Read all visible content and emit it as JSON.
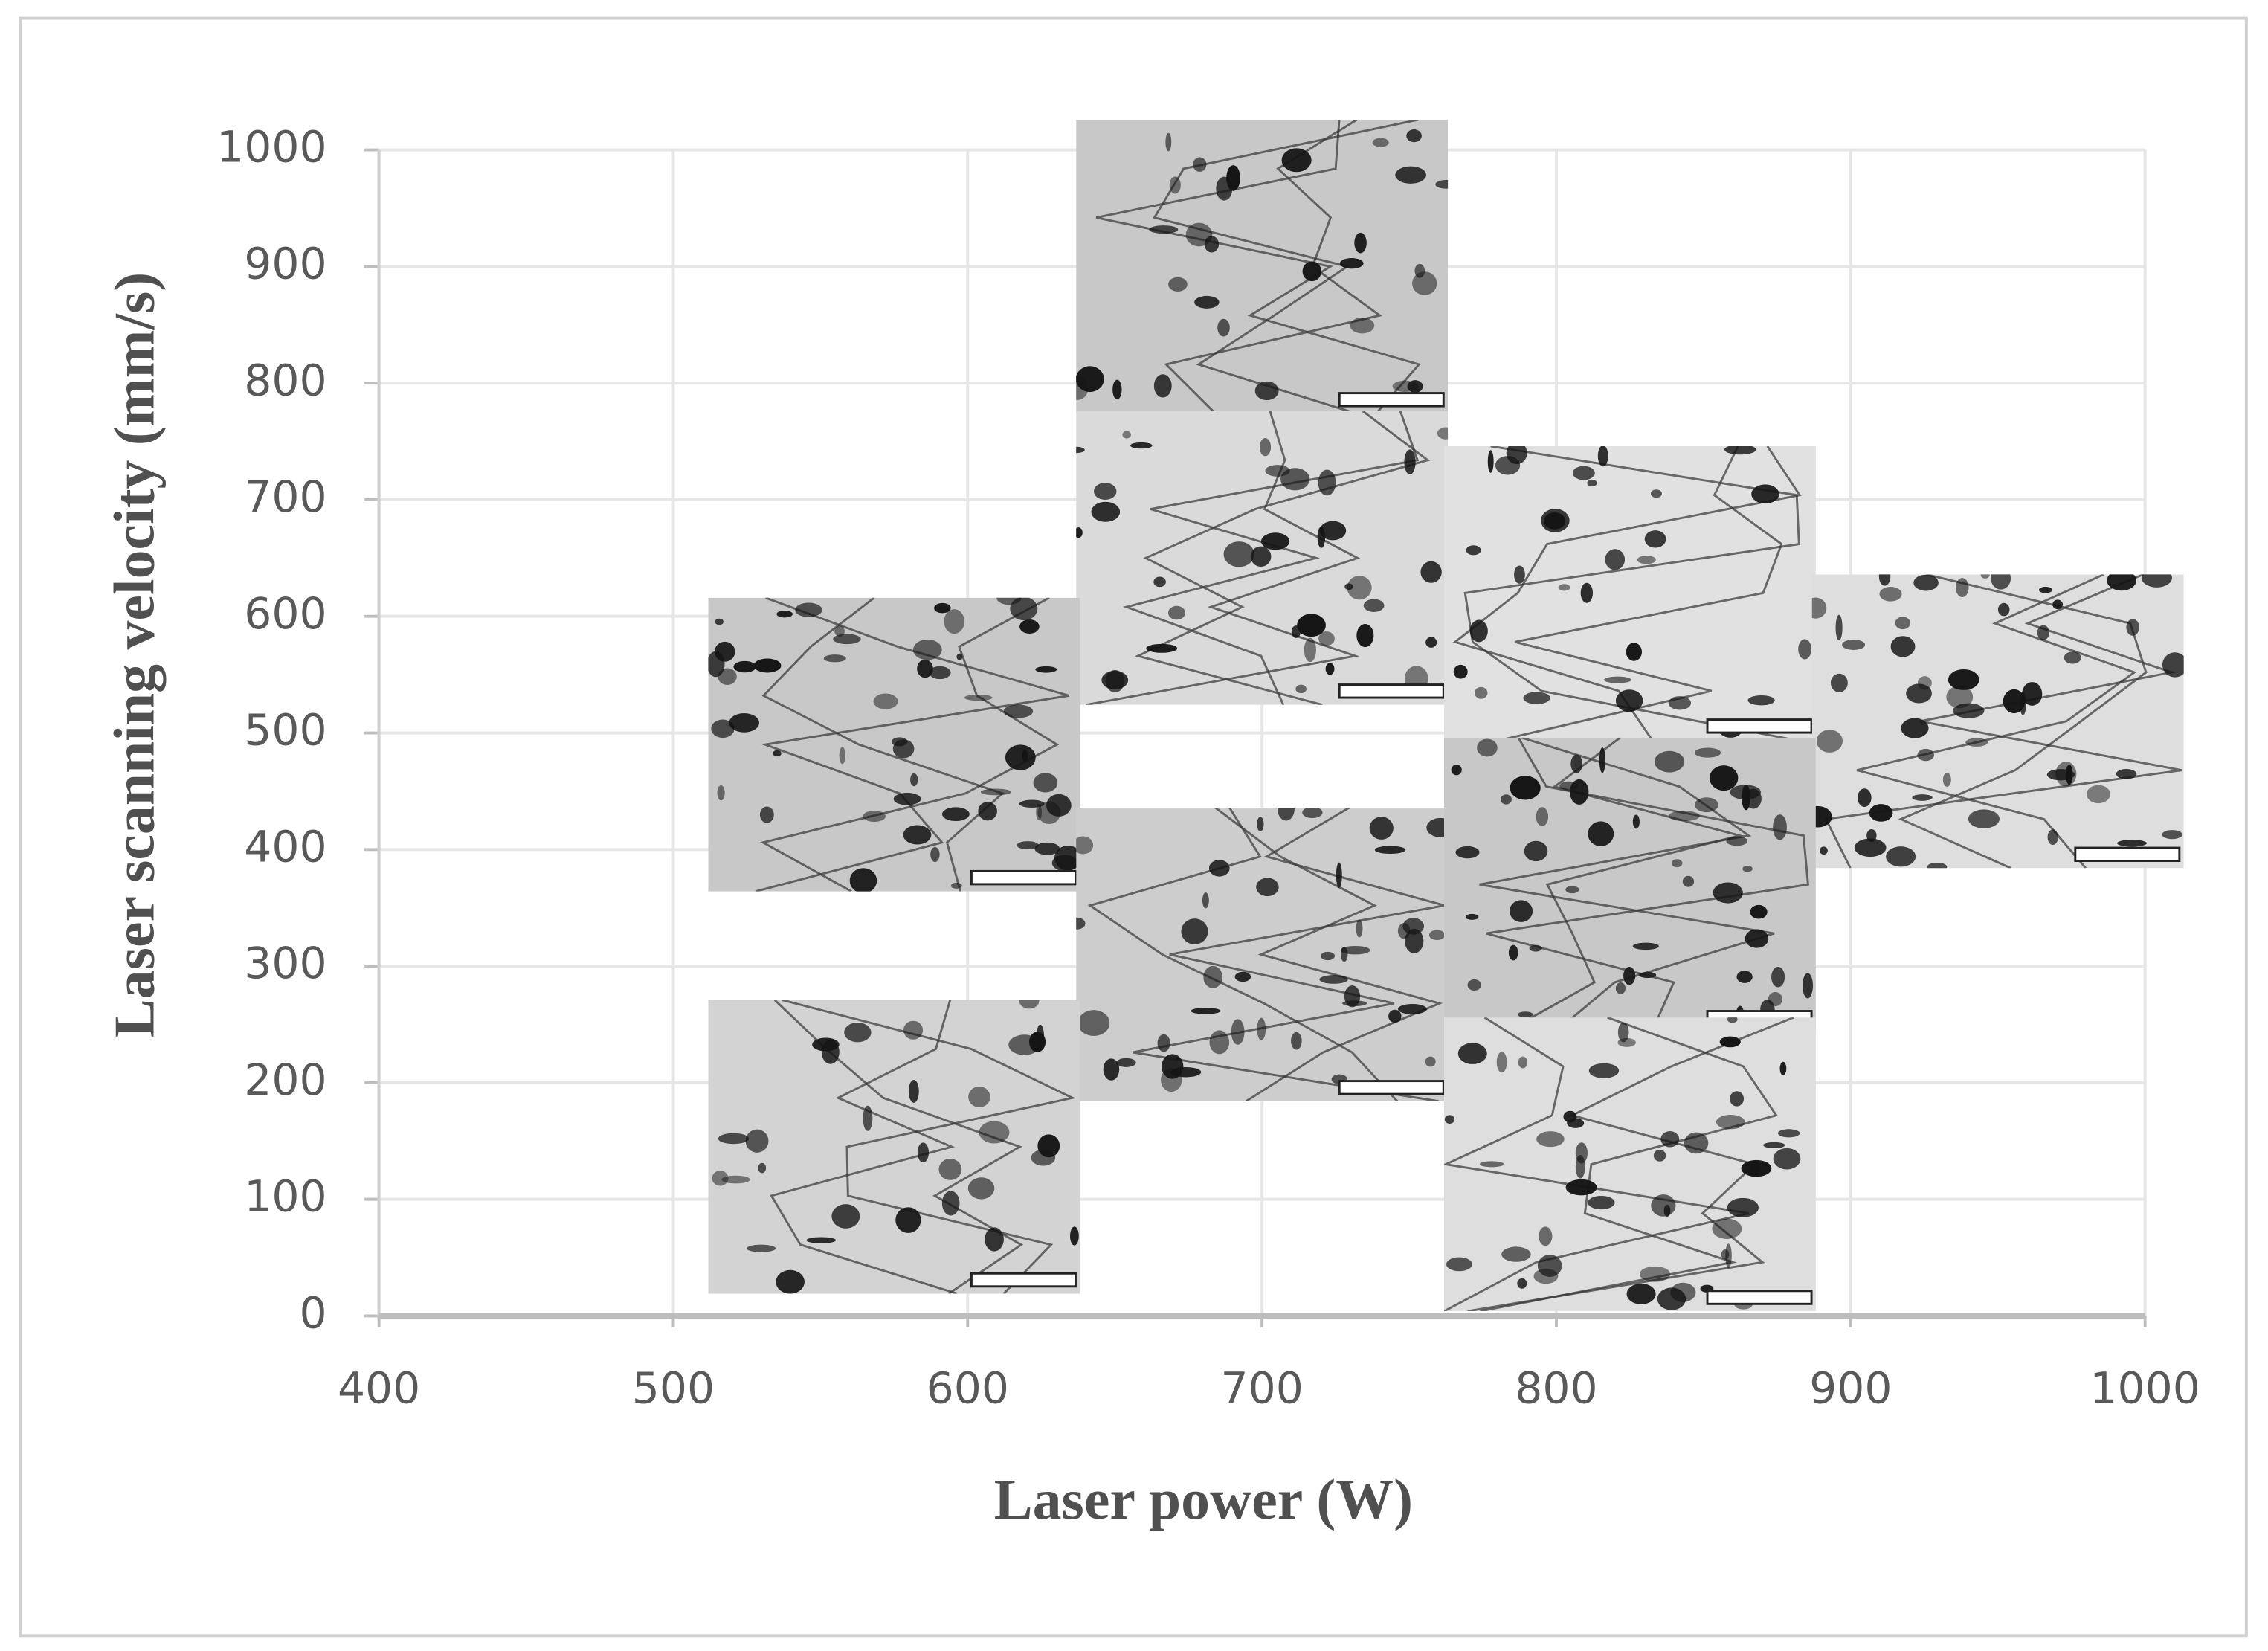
{
  "chart_data": {
    "type": "scatter",
    "x_label": "Laser power (W)",
    "y_label": "Laser scanning velocity (mm/s)",
    "x": [
      700,
      700,
      825,
      950,
      575,
      700,
      825,
      575,
      825
    ],
    "values": [
      900,
      650,
      620,
      510,
      490,
      310,
      370,
      145,
      130
    ],
    "xlim": [
      400,
      1000
    ],
    "xticks": [
      400,
      500,
      600,
      700,
      800,
      900,
      1000
    ],
    "ylim": [
      0,
      1000
    ],
    "yticks": [
      0,
      100,
      200,
      300,
      400,
      500,
      600,
      700,
      800,
      900,
      1000
    ],
    "grid": true
  }
}
